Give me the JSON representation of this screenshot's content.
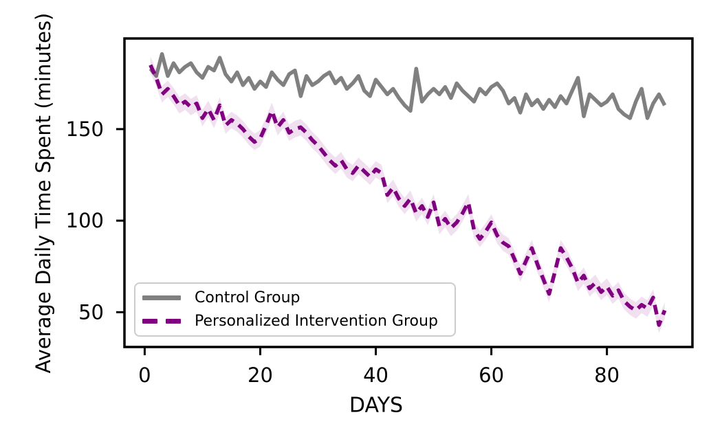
{
  "chart_data": {
    "type": "line",
    "title": "",
    "xlabel": "DAYS",
    "ylabel": "Average Daily Time Spent (minutes)",
    "x_ticks": [
      0,
      20,
      40,
      60,
      80
    ],
    "y_ticks": [
      50,
      100,
      150
    ],
    "xlim": [
      -3.5,
      94.8
    ],
    "ylim": [
      31,
      199.5
    ],
    "grid": false,
    "background_color": "#ffffff",
    "axis_color": "#000000",
    "x": [
      1,
      2,
      3,
      4,
      5,
      6,
      7,
      8,
      9,
      10,
      11,
      12,
      13,
      14,
      15,
      16,
      17,
      18,
      19,
      20,
      21,
      22,
      23,
      24,
      25,
      26,
      27,
      28,
      29,
      30,
      31,
      32,
      33,
      34,
      35,
      36,
      37,
      38,
      39,
      40,
      41,
      42,
      43,
      44,
      45,
      46,
      47,
      48,
      49,
      50,
      51,
      52,
      53,
      54,
      55,
      56,
      57,
      58,
      59,
      60,
      61,
      62,
      63,
      64,
      65,
      66,
      67,
      68,
      69,
      70,
      71,
      72,
      73,
      74,
      75,
      76,
      77,
      78,
      79,
      80,
      81,
      82,
      83,
      84,
      85,
      86,
      87,
      88,
      89,
      90
    ],
    "series": [
      {
        "name": "Control Group",
        "color": "#808080",
        "style": "solid",
        "line_width": 5.5,
        "values": [
          183,
          179,
          191,
          179,
          186,
          181,
          184,
          186,
          181,
          178,
          184,
          182,
          189,
          180,
          176,
          181,
          174,
          178,
          172,
          176,
          173,
          181,
          177,
          174,
          180,
          182,
          168,
          179,
          174,
          176,
          179,
          181,
          175,
          178,
          172,
          175,
          179,
          171,
          168,
          177,
          173,
          169,
          172,
          167,
          163,
          160,
          183,
          165,
          169,
          172,
          169,
          173,
          167,
          175,
          171,
          168,
          165,
          172,
          169,
          173,
          175,
          171,
          164,
          167,
          159,
          169,
          163,
          166,
          161,
          166,
          162,
          168,
          164,
          171,
          178,
          157,
          169,
          166,
          163,
          165,
          169,
          161,
          158,
          156,
          165,
          172,
          156,
          164,
          169,
          163
        ]
      },
      {
        "name": "Personalized Intervention Group",
        "color": "#800080",
        "style": "dashed",
        "line_width": 5.5,
        "dash_pattern": "14 9",
        "ci_halfwidth": 4.5,
        "band_color": "#800080",
        "band_opacity": 0.12,
        "values": [
          185,
          178,
          169,
          172,
          168,
          163,
          165,
          162,
          164,
          156,
          161,
          155,
          163,
          152,
          155,
          153,
          150,
          146,
          143,
          145,
          152,
          160,
          151,
          155,
          148,
          150,
          151,
          148,
          144,
          141,
          137,
          133,
          130,
          133,
          128,
          126,
          130,
          127,
          124,
          128,
          126,
          114,
          118,
          112,
          108,
          112,
          104,
          108,
          102,
          110,
          97,
          101,
          96,
          99,
          104,
          110,
          95,
          90,
          94,
          99,
          92,
          88,
          86,
          79,
          71,
          78,
          85,
          76,
          68,
          60,
          72,
          85,
          80,
          74,
          66,
          70,
          63,
          66,
          61,
          64,
          59,
          62,
          56,
          53,
          51,
          54,
          52,
          58,
          43,
          51
        ]
      }
    ],
    "legend": {
      "position": "lower left",
      "background": "#ffffff",
      "border_color": "#cccccc",
      "entries": [
        "Control Group",
        "Personalized Intervention Group"
      ]
    }
  }
}
